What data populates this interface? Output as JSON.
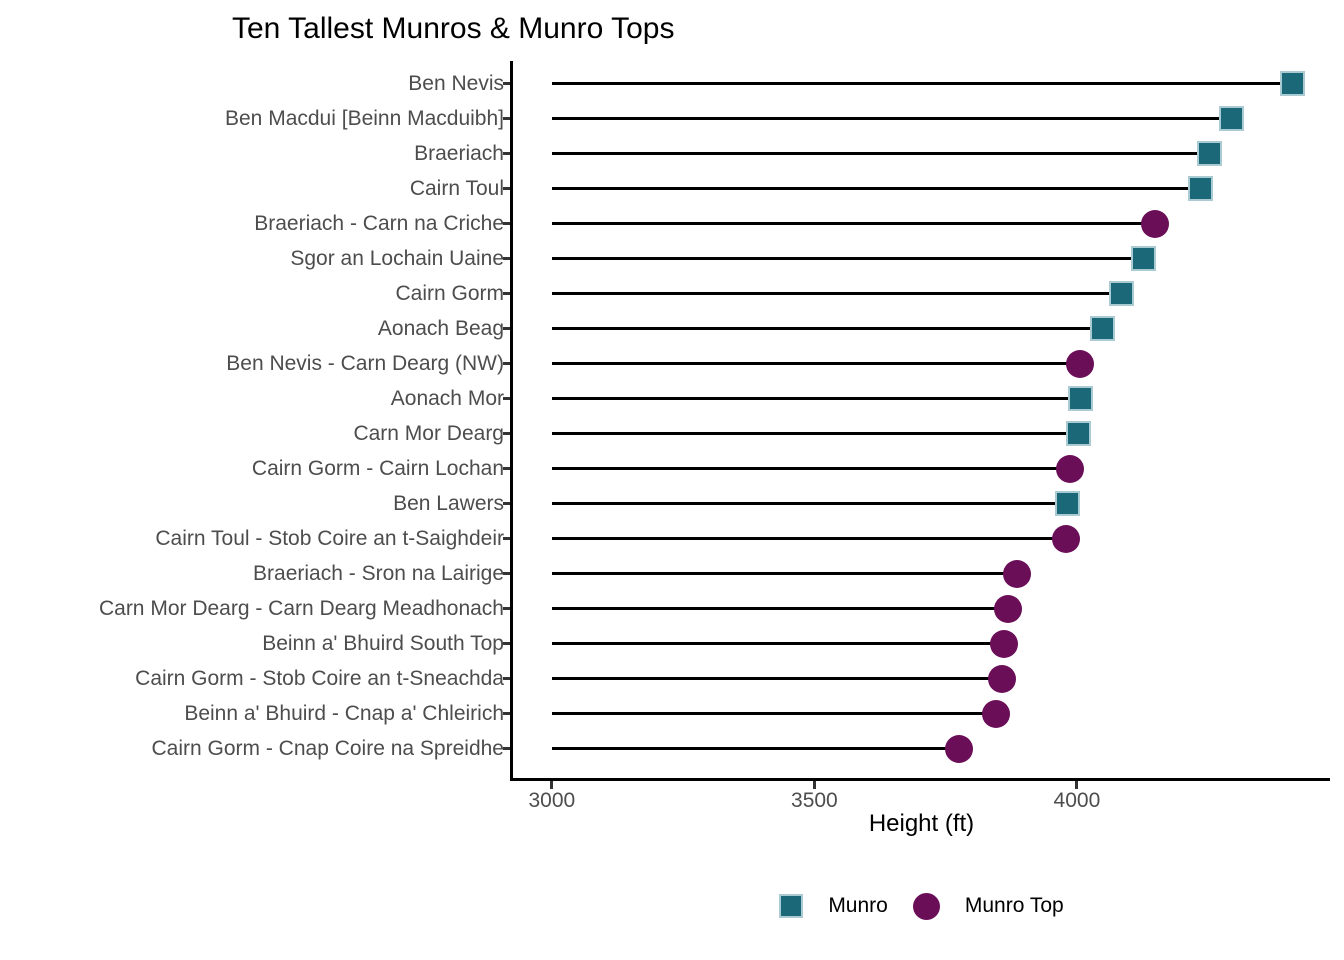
{
  "colors": {
    "munro": "#1B6878",
    "munro_top": "#6B0E58",
    "munro_border": "#A9CBD1",
    "stem": "#000000",
    "axis_line": "#000000",
    "axis_text": "#4D4D4D",
    "background": "#FFFFFF"
  },
  "chart_data": {
    "type": "bar",
    "variant": "lollipop",
    "orientation": "horizontal",
    "title": "Ten Tallest Munros & Munro Tops",
    "xlabel": "Height (ft)",
    "ylabel": "",
    "x_ticks": [
      3000,
      3500,
      4000
    ],
    "xlim": [
      2926,
      4482
    ],
    "baseline": 3000,
    "grid": false,
    "legend": {
      "position": "bottom",
      "entries": [
        {
          "label": "Munro",
          "marker": "square",
          "color": "#1B6878"
        },
        {
          "label": "Munro Top",
          "marker": "circle",
          "color": "#6B0E58"
        }
      ]
    },
    "items": [
      {
        "label": "Ben Nevis",
        "value": 4411,
        "kind": "Munro"
      },
      {
        "label": "Ben Macdui [Beinn Macduibh]",
        "value": 4295,
        "kind": "Munro"
      },
      {
        "label": "Braeriach",
        "value": 4252,
        "kind": "Munro"
      },
      {
        "label": "Cairn Toul",
        "value": 4236,
        "kind": "Munro"
      },
      {
        "label": "Braeriach - Carn na Criche",
        "value": 4149,
        "kind": "Munro Top"
      },
      {
        "label": "Sgor an Lochain Uaine",
        "value": 4127,
        "kind": "Munro"
      },
      {
        "label": "Cairn Gorm",
        "value": 4084,
        "kind": "Munro"
      },
      {
        "label": "Aonach Beag",
        "value": 4049,
        "kind": "Munro"
      },
      {
        "label": "Ben Nevis - Carn Dearg (NW)",
        "value": 4006,
        "kind": "Munro Top"
      },
      {
        "label": "Aonach Mor",
        "value": 4006,
        "kind": "Munro"
      },
      {
        "label": "Carn Mor Dearg",
        "value": 4003,
        "kind": "Munro"
      },
      {
        "label": "Cairn Gorm - Cairn Lochan",
        "value": 3986,
        "kind": "Munro Top"
      },
      {
        "label": "Ben Lawers",
        "value": 3983,
        "kind": "Munro"
      },
      {
        "label": "Cairn Toul - Stob Coire an t-Saighdeir",
        "value": 3980,
        "kind": "Munro Top"
      },
      {
        "label": "Braeriach - Sron na Lairige",
        "value": 3885,
        "kind": "Munro Top"
      },
      {
        "label": "Carn Mor Dearg - Carn Dearg Meadhonach",
        "value": 3868,
        "kind": "Munro Top"
      },
      {
        "label": "Beinn a' Bhuird South Top",
        "value": 3862,
        "kind": "Munro Top"
      },
      {
        "label": "Cairn Gorm - Stob Coire an t-Sneachda",
        "value": 3858,
        "kind": "Munro Top"
      },
      {
        "label": "Beinn a' Bhuird - Cnap a' Chleirich",
        "value": 3845,
        "kind": "Munro Top"
      },
      {
        "label": "Cairn Gorm - Cnap Coire na Spreidhe",
        "value": 3776,
        "kind": "Munro Top"
      }
    ]
  }
}
